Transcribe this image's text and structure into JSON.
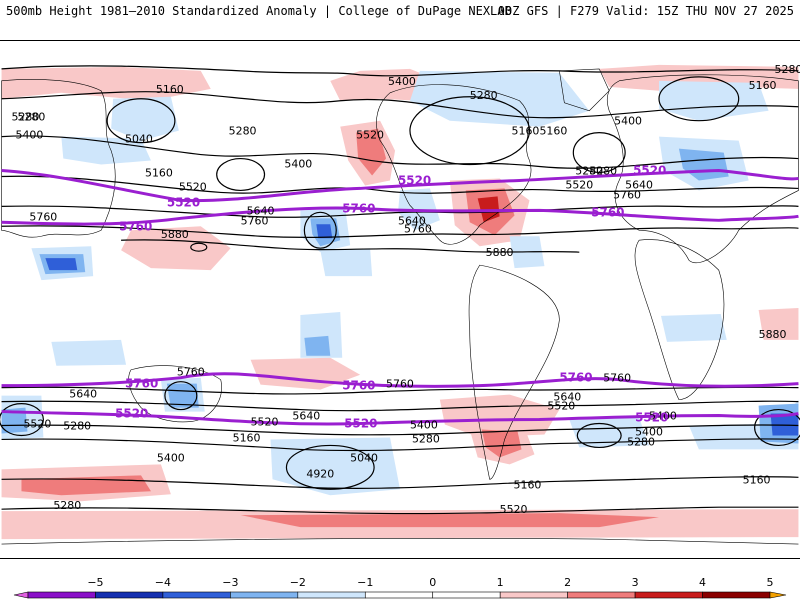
{
  "header": {
    "title": "500mb Height 1981–2010 Standardized Anomaly | College of DuPage NEXLAB",
    "run": "00Z GFS | F279 Valid: 15Z THU NOV 27 2025"
  },
  "colors": {
    "reference_contour": "#9a1fd0",
    "height_contour": "#000000",
    "coastline": "#000000",
    "neg_light": "#cfe6fb",
    "neg_mid": "#7fb4f0",
    "neg_strong": "#2f5fd8",
    "pos_light": "#f9c8c8",
    "pos_mid": "#ef7c7c",
    "pos_strong": "#c81c1c"
  },
  "contour_labels": {
    "c5400a": "5400",
    "c5280a": "5280",
    "c5160a": "5160",
    "c5280b": "5280",
    "c5160b": "5160",
    "c5280c": "5280",
    "c5400b": "5400",
    "c5040a": "5040",
    "c5280d": "5280",
    "c5520a": "5520",
    "c5400c": "5400",
    "c5160c": "5160",
    "c5520b": "5520",
    "c5640a": "5640",
    "c5760a": "5760",
    "c5880a": "5880",
    "c5760b": "5760",
    "c5640b": "5640",
    "c5760c": "5760",
    "c5520c": "5520",
    "c5280e": "5280",
    "c5640c": "5640",
    "c5760d": "5760",
    "c5880b": "5880",
    "c5400d": "5400",
    "c5160d": "5160",
    "c5280f": "5280",
    "c5160e": "5160",
    "c5280g": "5280",
    "c5880c": "5880",
    "s5760a": "5760",
    "s5640a": "5640",
    "s5520a": "5520",
    "s5280a": "5280",
    "s5400a": "5400",
    "s5520b": "5520",
    "s5640b": "5640",
    "s5160a": "5160",
    "s5760b": "5760",
    "s5040a": "5040",
    "s4920a": "4920",
    "s5400b": "5400",
    "s5280b": "5280",
    "s5280c": "5280",
    "s5640c": "5640",
    "s5520c": "5520",
    "s5760c": "5760",
    "s5400c": "5400",
    "s5280d": "5280",
    "s5160b": "5160",
    "s5400d": "5400",
    "s5160c": "5160",
    "s5520d": "5520"
  },
  "reference_labels": {
    "n5520a": "5520",
    "n5520b": "5520",
    "n5520c": "5520",
    "n5760a": "5760",
    "n5760b": "5760",
    "n5760c": "5760",
    "s5760a": "5760",
    "s5760b": "5760",
    "s5760c": "5760",
    "s5520a": "5520",
    "s5520b": "5520",
    "s5520c": "5520"
  },
  "colorbar": {
    "ticks": [
      "−5",
      "−4",
      "−3",
      "−2",
      "−1",
      "0",
      "1",
      "2",
      "3",
      "4",
      "5"
    ],
    "bins": [
      "#e060e0",
      "#8a10c8",
      "#1530b0",
      "#2f5fd8",
      "#7fb4f0",
      "#cfe6fb",
      "#ffffff",
      "#ffffff",
      "#f9c8c8",
      "#ef7c7c",
      "#c81c1c",
      "#8a0000",
      "#f2a000"
    ]
  }
}
